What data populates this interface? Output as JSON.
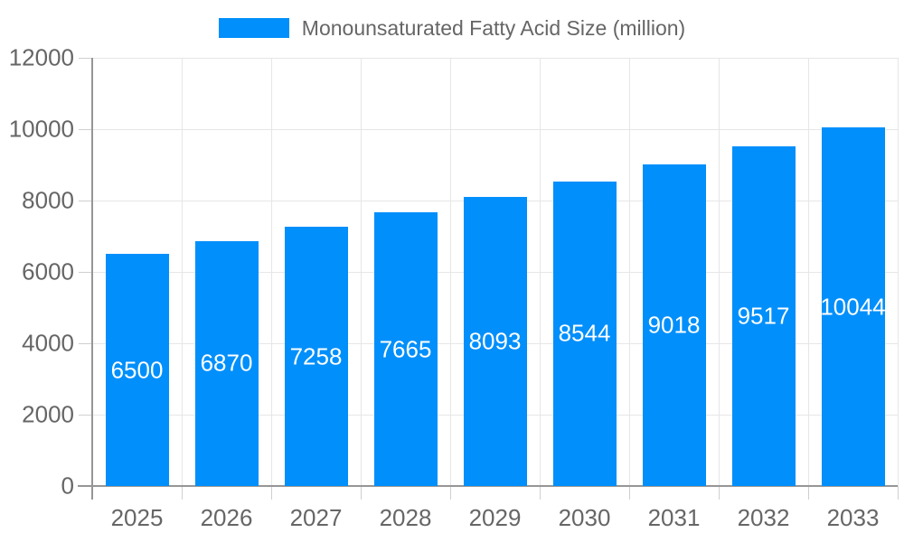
{
  "chart_data": {
    "type": "bar",
    "title": "",
    "categories": [
      "2025",
      "2026",
      "2027",
      "2028",
      "2029",
      "2030",
      "2031",
      "2032",
      "2033"
    ],
    "series": [
      {
        "name": "Monounsaturated Fatty Acid Size (million)",
        "values": [
          6500,
          6870,
          7258,
          7665,
          8093,
          8544,
          9018,
          9517,
          10044
        ]
      }
    ],
    "xlabel": "",
    "ylabel": "",
    "ylim": [
      0,
      12000
    ],
    "yticks": [
      0,
      2000,
      4000,
      6000,
      8000,
      10000,
      12000
    ],
    "grid": true,
    "legend_position": "top-center",
    "value_labels": "inside-center-white",
    "colors": {
      "bar": "#008FFB",
      "axis_line": "#969696",
      "gridline": "#e6e6e6",
      "tick": "#cfcfcf",
      "label_text": "#666666",
      "bar_label_text": "#ffffff"
    }
  }
}
